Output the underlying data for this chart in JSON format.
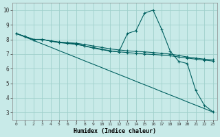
{
  "xlabel": "Humidex (Indice chaleur)",
  "background_color": "#c8eae8",
  "line_color": "#006060",
  "grid_color": "#a0d0cc",
  "xlim": [
    -0.5,
    23.5
  ],
  "ylim": [
    2.5,
    10.5
  ],
  "xtick_labels": [
    "0",
    "1",
    "2",
    "3",
    "4",
    "5",
    "6",
    "7",
    "8",
    "9",
    "10",
    "11",
    "12",
    "13",
    "14",
    "15",
    "16",
    "17",
    "18",
    "19",
    "20",
    "21",
    "22",
    "23"
  ],
  "ytick_values": [
    3,
    4,
    5,
    6,
    7,
    8,
    9,
    10
  ],
  "series": [
    {
      "x": [
        0,
        1,
        2,
        3,
        4,
        5,
        6,
        7,
        8,
        9,
        10,
        11,
        12,
        13,
        14,
        15,
        16,
        17,
        18,
        19,
        20,
        21,
        22,
        23
      ],
      "y": [
        8.4,
        8.17,
        7.93,
        7.7,
        7.47,
        7.23,
        7.0,
        6.77,
        6.53,
        6.3,
        6.07,
        5.83,
        5.6,
        5.37,
        5.13,
        4.9,
        4.67,
        4.43,
        4.2,
        3.97,
        3.73,
        3.5,
        3.27,
        3.03
      ],
      "marker": null
    },
    {
      "x": [
        0,
        1,
        2,
        3,
        4,
        5,
        6,
        7,
        8,
        9,
        10,
        11,
        12,
        13,
        14,
        15,
        16,
        17,
        18,
        19,
        20,
        21,
        22,
        23
      ],
      "y": [
        8.4,
        8.2,
        8.0,
        8.0,
        7.9,
        7.8,
        7.75,
        7.7,
        7.55,
        7.4,
        7.3,
        7.2,
        7.15,
        8.4,
        8.6,
        9.8,
        10.0,
        8.7,
        7.2,
        6.5,
        6.35,
        4.5,
        3.5,
        3.05
      ],
      "marker": "+"
    },
    {
      "x": [
        0,
        1,
        2,
        3,
        4,
        5,
        6,
        7,
        8,
        9,
        10,
        11,
        12,
        13,
        14,
        15,
        16,
        17,
        18,
        19,
        20,
        21,
        22,
        23
      ],
      "y": [
        8.4,
        8.2,
        8.0,
        8.0,
        7.9,
        7.82,
        7.78,
        7.74,
        7.65,
        7.55,
        7.45,
        7.35,
        7.28,
        7.22,
        7.18,
        7.15,
        7.1,
        7.05,
        7.0,
        6.9,
        6.8,
        6.72,
        6.65,
        6.6
      ],
      "marker": "+"
    },
    {
      "x": [
        0,
        1,
        2,
        3,
        4,
        5,
        6,
        7,
        8,
        9,
        10,
        11,
        12,
        13,
        14,
        15,
        16,
        17,
        18,
        19,
        20,
        21,
        22,
        23
      ],
      "y": [
        8.4,
        8.2,
        8.0,
        8.0,
        7.88,
        7.78,
        7.72,
        7.66,
        7.55,
        7.44,
        7.33,
        7.22,
        7.15,
        7.1,
        7.05,
        7.0,
        6.97,
        6.93,
        6.88,
        6.8,
        6.72,
        6.65,
        6.58,
        6.52
      ],
      "marker": "+"
    }
  ]
}
